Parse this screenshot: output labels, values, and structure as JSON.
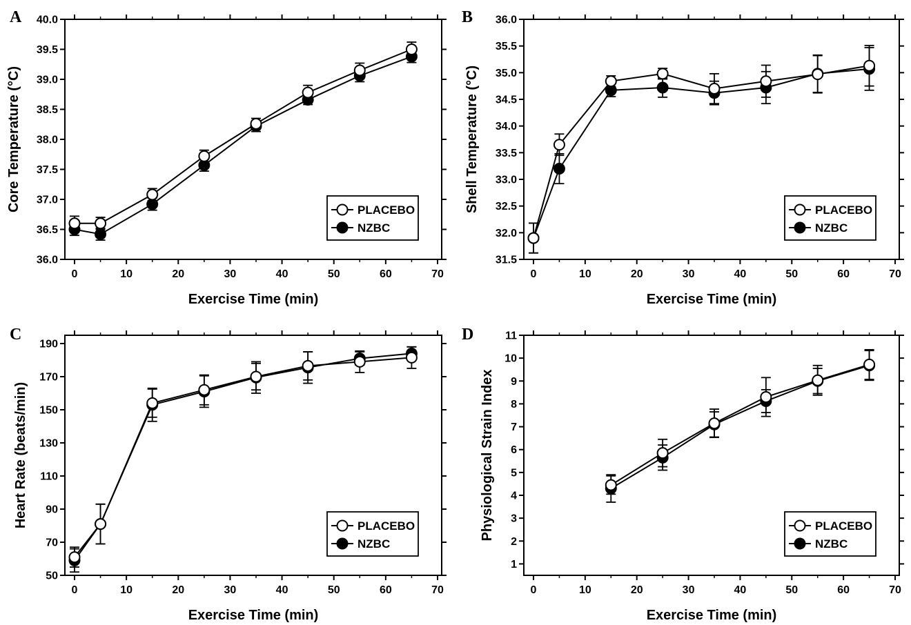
{
  "chart_data": [
    {
      "panel": "A",
      "type": "line",
      "xlabel": "Exercise Time (min)",
      "ylabel": "Core Temperature (°C)",
      "xlim": [
        0,
        70
      ],
      "ylim": [
        36.0,
        40.0
      ],
      "xticks": [
        "0",
        "10",
        "20",
        "30",
        "40",
        "50",
        "60",
        "70"
      ],
      "yticks": [
        "36.0",
        "36.5",
        "37.0",
        "37.5",
        "38.0",
        "38.5",
        "39.0",
        "39.5",
        "40.0"
      ],
      "legend_position": "bottom-right",
      "series": [
        {
          "name": "PLACEBO",
          "marker": "open-circle",
          "x": [
            0,
            5,
            15,
            25,
            35,
            45,
            55,
            65
          ],
          "y": [
            36.6,
            36.6,
            37.08,
            37.72,
            38.26,
            38.78,
            39.15,
            39.5
          ],
          "err": [
            0.12,
            0.1,
            0.1,
            0.1,
            0.09,
            0.12,
            0.12,
            0.12
          ]
        },
        {
          "name": "NZBC",
          "marker": "filled-circle",
          "x": [
            0,
            5,
            15,
            25,
            35,
            45,
            55,
            65
          ],
          "y": [
            36.5,
            36.42,
            36.92,
            37.57,
            38.22,
            38.66,
            39.06,
            39.38
          ],
          "err": [
            0.1,
            0.1,
            0.1,
            0.1,
            0.09,
            0.08,
            0.1,
            0.1
          ]
        }
      ]
    },
    {
      "panel": "B",
      "type": "line",
      "xlabel": "Exercise Time (min)",
      "ylabel": "Shell Temperature (°C)",
      "xlim": [
        0,
        70
      ],
      "ylim": [
        31.5,
        36.0
      ],
      "xticks": [
        "0",
        "10",
        "20",
        "30",
        "40",
        "50",
        "60",
        "70"
      ],
      "yticks": [
        "31.5",
        "32.0",
        "32.5",
        "33.0",
        "33.5",
        "34.0",
        "34.5",
        "35.0",
        "35.5",
        "36.0"
      ],
      "legend_position": "bottom-right",
      "series": [
        {
          "name": "PLACEBO",
          "marker": "open-circle",
          "x": [
            0,
            5,
            15,
            25,
            35,
            45,
            55,
            65
          ],
          "y": [
            31.9,
            33.65,
            34.84,
            34.98,
            34.7,
            34.84,
            34.97,
            35.13
          ],
          "err": [
            0.28,
            0.2,
            0.1,
            0.1,
            0.28,
            0.3,
            0.35,
            0.38
          ]
        },
        {
          "name": "NZBC",
          "marker": "filled-circle",
          "x": [
            0,
            5,
            15,
            25,
            35,
            45,
            55,
            65
          ],
          "y": [
            31.9,
            33.2,
            34.67,
            34.72,
            34.62,
            34.72,
            34.98,
            35.07
          ],
          "err": [
            0.28,
            0.28,
            0.12,
            0.18,
            0.22,
            0.3,
            0.35,
            0.4
          ]
        }
      ]
    },
    {
      "panel": "C",
      "type": "line",
      "xlabel": "Exercise Time (min)",
      "ylabel": "Heart Rate (beats/min)",
      "xlim": [
        0,
        70
      ],
      "ylim": [
        50,
        195
      ],
      "xticks": [
        "0",
        "10",
        "20",
        "30",
        "40",
        "50",
        "60",
        "70"
      ],
      "yticks": [
        "50",
        "70",
        "90",
        "110",
        "130",
        "150",
        "170",
        "190"
      ],
      "legend_position": "bottom-right",
      "series": [
        {
          "name": "PLACEBO",
          "marker": "open-circle",
          "x": [
            0,
            5,
            15,
            25,
            35,
            45,
            55,
            65
          ],
          "y": [
            61,
            81,
            154,
            162,
            170,
            176.5,
            179,
            181.5
          ],
          "err": [
            6,
            12,
            8.5,
            9,
            8,
            8.5,
            6.5,
            6.5
          ]
        },
        {
          "name": "NZBC",
          "marker": "filled-circle",
          "x": [
            0,
            5,
            15,
            25,
            35,
            45,
            55,
            65
          ],
          "y": [
            59,
            81,
            153,
            161,
            169.5,
            175.5,
            181,
            184
          ],
          "err": [
            7,
            12,
            10,
            9.5,
            9.5,
            9.5,
            4,
            4
          ]
        }
      ]
    },
    {
      "panel": "D",
      "type": "line",
      "xlabel": "Exercise Time (min)",
      "ylabel": "Physiological Strain Index",
      "xlim": [
        0,
        70
      ],
      "ylim": [
        0.5,
        11
      ],
      "xticks": [
        "0",
        "10",
        "20",
        "30",
        "40",
        "50",
        "60",
        "70"
      ],
      "yticks": [
        "1",
        "2",
        "3",
        "4",
        "5",
        "6",
        "7",
        "8",
        "9",
        "10",
        "11"
      ],
      "legend_position": "bottom-right",
      "series": [
        {
          "name": "PLACEBO",
          "marker": "open-circle",
          "x": [
            15,
            25,
            35,
            45,
            55,
            65
          ],
          "y": [
            4.45,
            5.85,
            7.15,
            8.3,
            9.03,
            9.72
          ],
          "err": [
            0.4,
            0.6,
            0.62,
            0.85,
            0.65,
            0.65
          ]
        },
        {
          "name": "NZBC",
          "marker": "filled-circle",
          "x": [
            15,
            25,
            35,
            45,
            55,
            65
          ],
          "y": [
            4.3,
            5.65,
            7.1,
            8.12,
            9.0,
            9.68
          ],
          "err": [
            0.6,
            0.55,
            0.55,
            0.5,
            0.55,
            0.65
          ]
        }
      ]
    }
  ]
}
